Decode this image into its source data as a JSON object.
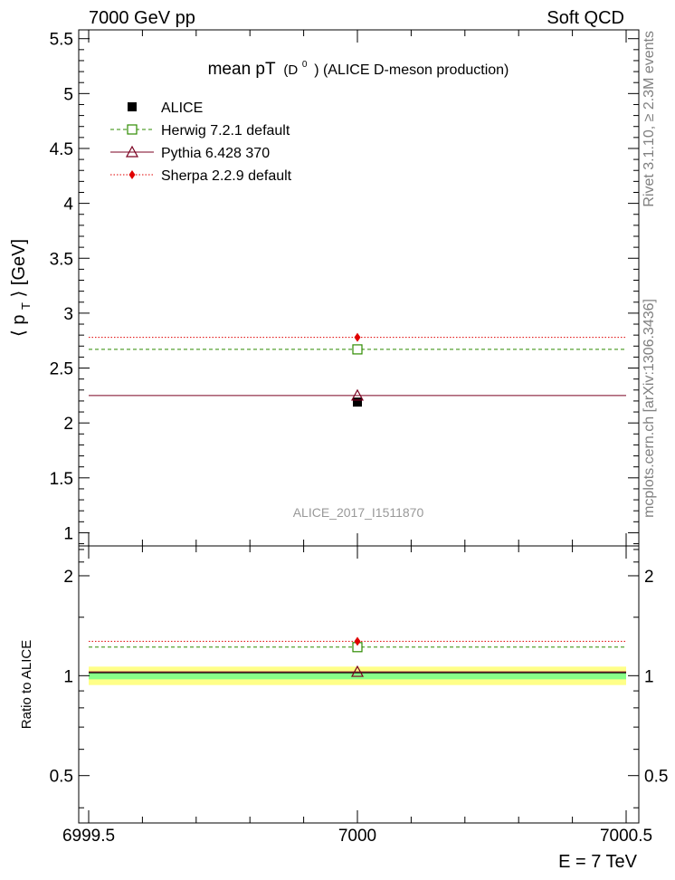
{
  "header": {
    "left": "7000 GeV pp",
    "right": "Soft QCD"
  },
  "side_labels": {
    "rivet": "Rivet 3.1.10, ≥ 2.3M events",
    "mcplots": "mcplots.cern.ch [arXiv:1306.3436]"
  },
  "chart_data": [
    {
      "type": "scatter",
      "title_main": "mean pT",
      "title_sup_base": "D",
      "title_sup": "0",
      "title_rest": "(ALICE D-meson production)",
      "ylabel_main": "⟨ p",
      "ylabel_sub": "T",
      "ylabel_rest": "⟩ [GeV]",
      "analysis_label": "ALICE_2017_I1511870",
      "xlim": [
        6999.5,
        7000.5
      ],
      "ylim": [
        0.88,
        5.58
      ],
      "yticks": [
        1,
        1.5,
        2,
        2.5,
        3,
        3.5,
        4,
        4.5,
        5,
        5.5
      ],
      "ytick_labels": [
        "1",
        "1.5",
        "2",
        "2.5",
        "3",
        "3.5",
        "4",
        "4.5",
        "5",
        "5.5"
      ],
      "legend_position": "top-left",
      "series": [
        {
          "name": "ALICE",
          "x": 7000,
          "y": 2.19,
          "color": "#000000",
          "marker": "square-filled",
          "line": "none"
        },
        {
          "name": "Herwig 7.2.1 default",
          "x": 7000,
          "y": 2.67,
          "color": "#2e8b00",
          "marker": "square-open",
          "line": "dashed"
        },
        {
          "name": "Pythia 6.428 370",
          "x": 7000,
          "y": 2.25,
          "color": "#7a0020",
          "marker": "triangle-open",
          "line": "solid"
        },
        {
          "name": "Sherpa 2.2.9 default",
          "x": 7000,
          "y": 2.78,
          "color": "#e00000",
          "marker": "diamond-filled",
          "line": "dotted"
        }
      ]
    },
    {
      "type": "scatter",
      "ylabel": "Ratio to ALICE",
      "xlabel": "E = 7 TeV",
      "xlim": [
        6999.5,
        7000.5
      ],
      "ylim": [
        0.36,
        2.46
      ],
      "yticks": [
        0.5,
        1,
        2
      ],
      "ytick_labels": [
        "0.5",
        "1",
        "2"
      ],
      "xticks": [
        6999.5,
        7000,
        7000.5
      ],
      "xtick_labels": [
        "6999.5",
        "7000",
        "7000.5"
      ],
      "bands": {
        "yellow": [
          0.955,
          1.045
        ],
        "green": [
          0.975,
          1.025
        ],
        "line": 1.02
      },
      "series": [
        {
          "name": "Herwig 7.2.1 default",
          "x": 7000,
          "y": 1.219
        },
        {
          "name": "Pythia 6.428 370",
          "x": 7000,
          "y": 1.027
        },
        {
          "name": "Sherpa 2.2.9 default",
          "x": 7000,
          "y": 1.269
        }
      ]
    }
  ]
}
